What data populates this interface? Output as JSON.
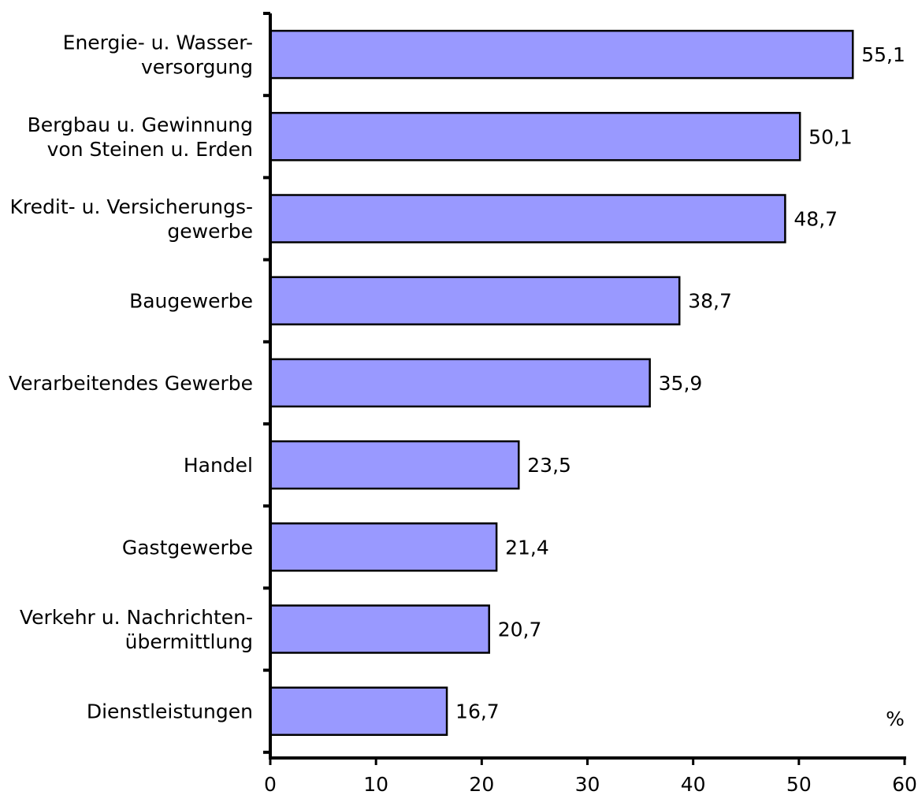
{
  "chart_data": {
    "type": "bar",
    "orientation": "horizontal",
    "categories": [
      [
        "Energie- u. Wasser-",
        "versorgung"
      ],
      [
        "Bergbau u. Gewinnung",
        "von Steinen u. Erden"
      ],
      [
        "Kredit- u. Versicherungs-",
        "gewerbe"
      ],
      [
        "Baugewerbe"
      ],
      [
        "Verarbeitendes Gewerbe"
      ],
      [
        "Handel"
      ],
      [
        "Gastgewerbe"
      ],
      [
        "Verkehr u. Nachrichten-",
        "übermittlung"
      ],
      [
        "Dienstleistungen"
      ]
    ],
    "values": [
      55.1,
      50.1,
      48.7,
      38.7,
      35.9,
      23.5,
      21.4,
      20.7,
      16.7
    ],
    "value_labels": [
      "55,1",
      "50,1",
      "48,7",
      "38,7",
      "35,9",
      "23,5",
      "21,4",
      "20,7",
      "16,7"
    ],
    "xlim": [
      0,
      60
    ],
    "xticks": [
      0,
      10,
      20,
      30,
      40,
      50,
      60
    ],
    "unit_label": "%",
    "bar_color": "#9999ff",
    "bar_border_color": "#000000",
    "grid": false,
    "legend": "none"
  }
}
